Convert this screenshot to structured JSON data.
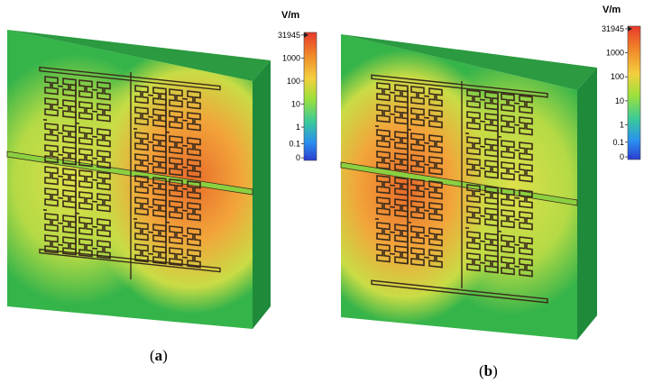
{
  "panels": [
    {
      "id": "a",
      "caption_letter": "a",
      "hot_side": "right",
      "colorbar": {
        "unit": "V/m",
        "ticks": [
          "31945",
          "1000",
          "100",
          "10",
          "1",
          "0.1",
          "0"
        ]
      }
    },
    {
      "id": "b",
      "caption_letter": "b",
      "hot_side": "left",
      "colorbar": {
        "unit": "V/m",
        "ticks": [
          "31945",
          "1000",
          "100",
          "10",
          "1",
          "0.1",
          "0"
        ]
      }
    }
  ],
  "colors": {
    "board_field_low": "#35b44a",
    "board_field_mid": "#7fd13b",
    "board_field_high": "#f08a2a",
    "board_side": "#1f8a3a",
    "board_top": "#3aa84c",
    "trace": "#3a2a1a",
    "colorbar_gradient": [
      "#e8392b",
      "#f08a2a",
      "#f4d03f",
      "#9be03c",
      "#3ac99b",
      "#2a8ff0",
      "#2a3fd0"
    ]
  }
}
